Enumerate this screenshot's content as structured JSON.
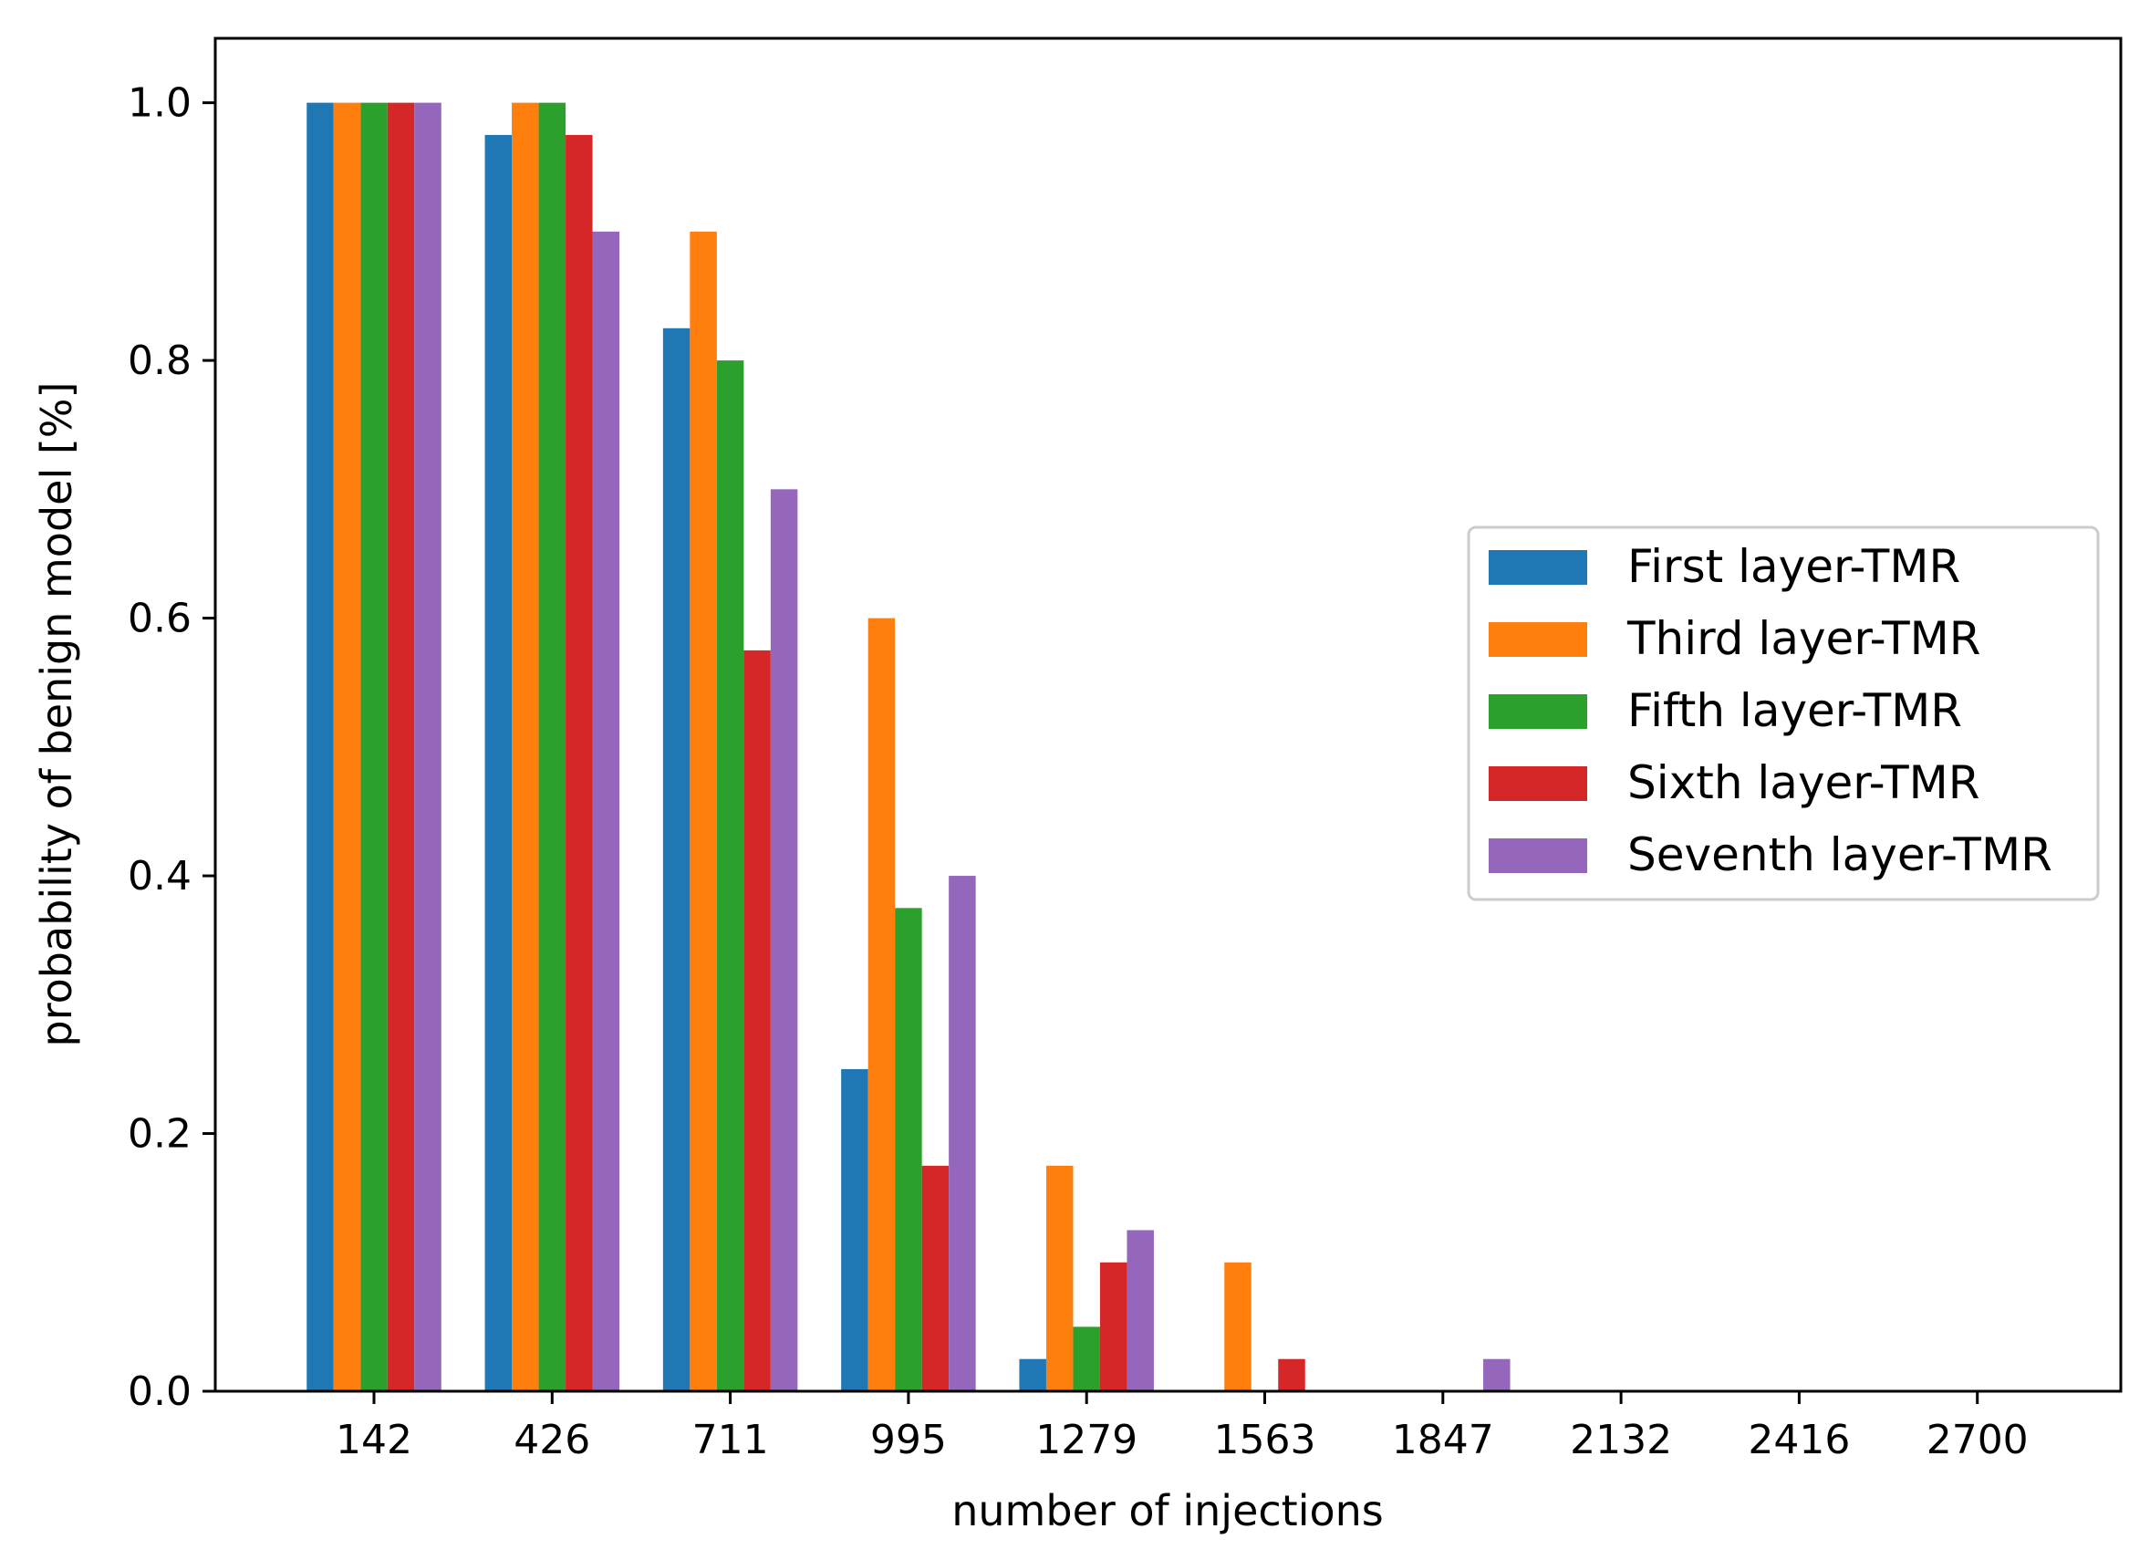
{
  "chart_data": {
    "type": "bar",
    "title": "",
    "xlabel": "number of injections",
    "ylabel": "probability of benign model [%]",
    "categories": [
      "142",
      "426",
      "711",
      "995",
      "1279",
      "1563",
      "1847",
      "2132",
      "2416",
      "2700"
    ],
    "ylim": [
      0,
      1.05
    ],
    "yticks": [
      "0.0",
      "0.2",
      "0.4",
      "0.6",
      "0.8",
      "1.0"
    ],
    "grid": false,
    "legend_position": "center-right",
    "series": [
      {
        "name": "First layer-TMR",
        "color": "#1f77b4",
        "values": [
          1.0,
          0.975,
          0.825,
          0.25,
          0.025,
          0,
          0,
          0,
          0,
          0
        ]
      },
      {
        "name": "Third layer-TMR",
        "color": "#ff7f0e",
        "values": [
          1.0,
          1.0,
          0.9,
          0.6,
          0.175,
          0.1,
          0,
          0,
          0,
          0
        ]
      },
      {
        "name": "Fifth layer-TMR",
        "color": "#2ca02c",
        "values": [
          1.0,
          1.0,
          0.8,
          0.375,
          0.05,
          0,
          0,
          0,
          0,
          0
        ]
      },
      {
        "name": "Sixth layer-TMR",
        "color": "#d62728",
        "values": [
          1.0,
          0.975,
          0.575,
          0.175,
          0.1,
          0.025,
          0,
          0,
          0,
          0
        ]
      },
      {
        "name": "Seventh layer-TMR",
        "color": "#9467bd",
        "values": [
          1.0,
          0.9,
          0.7,
          0.4,
          0.125,
          0,
          0.025,
          0,
          0,
          0
        ]
      }
    ]
  }
}
